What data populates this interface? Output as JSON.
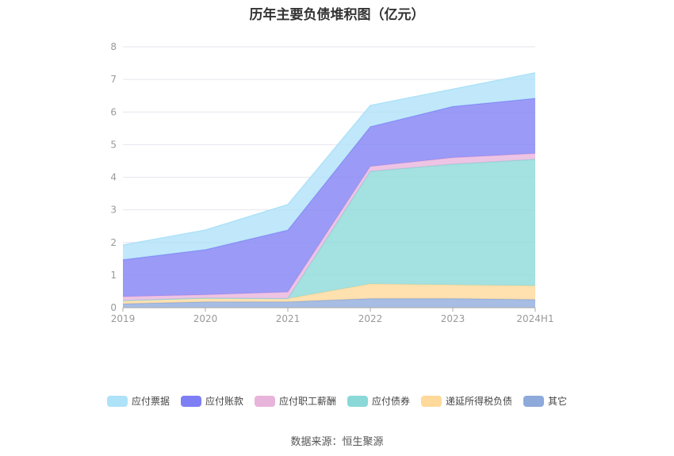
{
  "chart_data": {
    "type": "area",
    "stacked": true,
    "title": "历年主要负债堆积图（亿元）",
    "categories": [
      "2019",
      "2020",
      "2021",
      "2022",
      "2023",
      "2024H1"
    ],
    "ylim": [
      0,
      8
    ],
    "yticks": [
      "0",
      "1",
      "2",
      "3",
      "4",
      "5",
      "6",
      "7",
      "8"
    ],
    "grid": true,
    "legend_position": "bottom",
    "series": [
      {
        "name": "其它",
        "color": "#8eaadb",
        "values": [
          0.12,
          0.18,
          0.18,
          0.28,
          0.28,
          0.25
        ]
      },
      {
        "name": "递延所得税负债",
        "color": "#ffd99a",
        "values": [
          0.1,
          0.12,
          0.1,
          0.45,
          0.42,
          0.42
        ]
      },
      {
        "name": "应付债券",
        "color": "#8ad8d8",
        "values": [
          0.0,
          0.0,
          0.0,
          3.45,
          3.7,
          3.88
        ]
      },
      {
        "name": "应付职工薪酬",
        "color": "#e8b4dc",
        "values": [
          0.12,
          0.1,
          0.2,
          0.15,
          0.2,
          0.18
        ]
      },
      {
        "name": "应付账款",
        "color": "#7f7ff5",
        "values": [
          1.13,
          1.38,
          1.9,
          1.22,
          1.57,
          1.69
        ]
      },
      {
        "name": "应付票据",
        "color": "#aee2f8",
        "values": [
          0.45,
          0.6,
          0.78,
          0.65,
          0.53,
          0.78
        ]
      }
    ]
  },
  "legend_order": [
    "应付票据",
    "应付账款",
    "应付职工薪酬",
    "应付债券",
    "递延所得税负债",
    "其它"
  ],
  "source": "数据来源：恒生聚源"
}
